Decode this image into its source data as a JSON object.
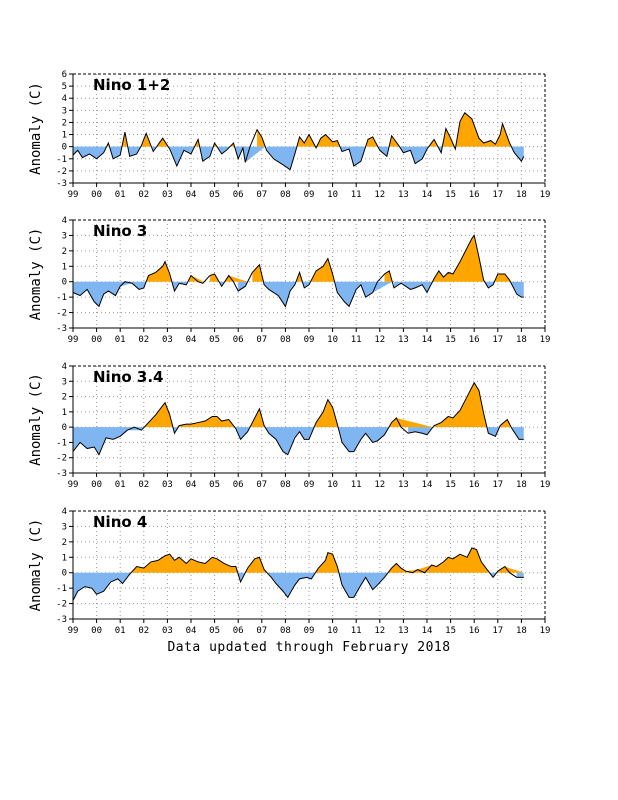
{
  "figure": {
    "footer": "Data updated through February 2018",
    "colors": {
      "positive": "#ffa500",
      "negative": "#7fb6f2",
      "line": "#000000",
      "grid": "#9a9a9a"
    }
  },
  "chart_data": [
    {
      "type": "area",
      "title": "Nino 1+2",
      "ylabel": "Anomaly (C)",
      "xlabel": "",
      "ylim": [
        -3,
        6
      ],
      "yticks": [
        "-3",
        "-2",
        "-1",
        "0",
        "1",
        "2",
        "3",
        "4",
        "5",
        "6"
      ],
      "xlim": [
        1999,
        2019
      ],
      "xticks": [
        "99",
        "00",
        "01",
        "02",
        "03",
        "04",
        "05",
        "06",
        "07",
        "08",
        "09",
        "10",
        "11",
        "12",
        "13",
        "14",
        "15",
        "16",
        "17",
        "18",
        "19"
      ],
      "grid": true,
      "series_points": [
        [
          1999.0,
          -0.7
        ],
        [
          1999.2,
          -0.3
        ],
        [
          1999.4,
          -0.9
        ],
        [
          1999.7,
          -0.6
        ],
        [
          2000.0,
          -1.0
        ],
        [
          2000.3,
          -0.5
        ],
        [
          2000.5,
          0.3
        ],
        [
          2000.7,
          -1.0
        ],
        [
          2001.0,
          -0.7
        ],
        [
          2001.2,
          1.2
        ],
        [
          2001.4,
          -0.8
        ],
        [
          2001.7,
          -0.6
        ],
        [
          2001.9,
          0.1
        ],
        [
          2002.1,
          1.1
        ],
        [
          2002.4,
          -0.4
        ],
        [
          2002.8,
          0.7
        ],
        [
          2003.1,
          -0.2
        ],
        [
          2003.4,
          -1.6
        ],
        [
          2003.7,
          -0.3
        ],
        [
          2004.0,
          -0.6
        ],
        [
          2004.3,
          0.6
        ],
        [
          2004.5,
          -1.2
        ],
        [
          2004.8,
          -0.8
        ],
        [
          2005.0,
          0.3
        ],
        [
          2005.3,
          -0.6
        ],
        [
          2005.5,
          -0.3
        ],
        [
          2005.8,
          0.3
        ],
        [
          2006.0,
          -1.0
        ],
        [
          2006.2,
          -0.1
        ],
        [
          2006.3,
          -1.3
        ],
        [
          2006.5,
          0.0
        ],
        [
          2006.8,
          1.4
        ],
        [
          2007.0,
          0.8
        ],
        [
          2007.2,
          -0.3
        ],
        [
          2007.5,
          -1.0
        ],
        [
          2007.9,
          -1.5
        ],
        [
          2008.2,
          -1.9
        ],
        [
          2008.4,
          -0.6
        ],
        [
          2008.6,
          0.8
        ],
        [
          2008.8,
          0.3
        ],
        [
          2009.0,
          1.0
        ],
        [
          2009.3,
          -0.1
        ],
        [
          2009.5,
          0.7
        ],
        [
          2009.7,
          1.0
        ],
        [
          2010.0,
          0.4
        ],
        [
          2010.2,
          0.5
        ],
        [
          2010.4,
          -0.4
        ],
        [
          2010.7,
          -0.2
        ],
        [
          2010.9,
          -1.6
        ],
        [
          2011.2,
          -1.2
        ],
        [
          2011.5,
          0.6
        ],
        [
          2011.7,
          0.8
        ],
        [
          2012.0,
          -0.3
        ],
        [
          2012.3,
          -0.8
        ],
        [
          2012.5,
          0.9
        ],
        [
          2012.8,
          0.1
        ],
        [
          2013.0,
          -0.5
        ],
        [
          2013.3,
          -0.3
        ],
        [
          2013.5,
          -1.4
        ],
        [
          2013.8,
          -1.0
        ],
        [
          2014.0,
          -0.2
        ],
        [
          2014.3,
          0.6
        ],
        [
          2014.6,
          -0.5
        ],
        [
          2014.8,
          1.5
        ],
        [
          2015.0,
          0.7
        ],
        [
          2015.2,
          -0.2
        ],
        [
          2015.4,
          2.1
        ],
        [
          2015.6,
          2.8
        ],
        [
          2015.9,
          2.3
        ],
        [
          2016.2,
          0.7
        ],
        [
          2016.4,
          0.3
        ],
        [
          2016.7,
          0.5
        ],
        [
          2016.9,
          0.2
        ],
        [
          2017.1,
          1.0
        ],
        [
          2017.2,
          1.9
        ],
        [
          2017.5,
          0.3
        ],
        [
          2017.7,
          -0.5
        ],
        [
          2018.0,
          -1.2
        ],
        [
          2018.1,
          -0.8
        ]
      ]
    },
    {
      "type": "area",
      "title": "Nino 3",
      "ylabel": "Anomaly (C)",
      "xlabel": "",
      "ylim": [
        -3,
        4
      ],
      "yticks": [
        "-3",
        "-2",
        "-1",
        "0",
        "1",
        "2",
        "3",
        "4"
      ],
      "xlim": [
        1999,
        2019
      ],
      "xticks": [
        "99",
        "00",
        "01",
        "02",
        "03",
        "04",
        "05",
        "06",
        "07",
        "08",
        "09",
        "10",
        "11",
        "12",
        "13",
        "14",
        "15",
        "16",
        "17",
        "18",
        "19"
      ],
      "grid": true,
      "series_points": [
        [
          1999.0,
          -0.7
        ],
        [
          1999.3,
          -0.9
        ],
        [
          1999.6,
          -0.5
        ],
        [
          1999.9,
          -1.3
        ],
        [
          2000.1,
          -1.6
        ],
        [
          2000.3,
          -0.8
        ],
        [
          2000.5,
          -0.6
        ],
        [
          2000.8,
          -0.9
        ],
        [
          2001.0,
          -0.3
        ],
        [
          2001.2,
          0.0
        ],
        [
          2001.5,
          -0.1
        ],
        [
          2001.8,
          -0.5
        ],
        [
          2002.0,
          -0.4
        ],
        [
          2002.2,
          0.4
        ],
        [
          2002.5,
          0.6
        ],
        [
          2002.8,
          1.0
        ],
        [
          2002.9,
          1.3
        ],
        [
          2003.1,
          0.5
        ],
        [
          2003.3,
          -0.6
        ],
        [
          2003.5,
          -0.1
        ],
        [
          2003.8,
          -0.2
        ],
        [
          2004.0,
          0.4
        ],
        [
          2004.3,
          0.0
        ],
        [
          2004.5,
          -0.1
        ],
        [
          2004.8,
          0.4
        ],
        [
          2005.0,
          0.5
        ],
        [
          2005.3,
          -0.3
        ],
        [
          2005.6,
          0.4
        ],
        [
          2005.8,
          0.0
        ],
        [
          2006.0,
          -0.6
        ],
        [
          2006.3,
          -0.3
        ],
        [
          2006.6,
          0.6
        ],
        [
          2006.9,
          1.1
        ],
        [
          2007.1,
          -0.2
        ],
        [
          2007.3,
          -0.5
        ],
        [
          2007.7,
          -0.9
        ],
        [
          2008.0,
          -1.6
        ],
        [
          2008.2,
          -0.6
        ],
        [
          2008.4,
          -0.2
        ],
        [
          2008.6,
          0.6
        ],
        [
          2008.8,
          -0.4
        ],
        [
          2009.0,
          -0.2
        ],
        [
          2009.3,
          0.7
        ],
        [
          2009.6,
          1.0
        ],
        [
          2009.8,
          1.5
        ],
        [
          2010.0,
          0.5
        ],
        [
          2010.2,
          -0.7
        ],
        [
          2010.5,
          -1.3
        ],
        [
          2010.7,
          -1.6
        ],
        [
          2011.0,
          -0.5
        ],
        [
          2011.2,
          -0.2
        ],
        [
          2011.4,
          -1.0
        ],
        [
          2011.7,
          -0.7
        ],
        [
          2011.9,
          0.0
        ],
        [
          2012.2,
          0.5
        ],
        [
          2012.4,
          0.7
        ],
        [
          2012.6,
          -0.4
        ],
        [
          2012.9,
          -0.1
        ],
        [
          2013.1,
          -0.3
        ],
        [
          2013.3,
          -0.5
        ],
        [
          2013.5,
          -0.4
        ],
        [
          2013.8,
          -0.2
        ],
        [
          2014.0,
          -0.7
        ],
        [
          2014.3,
          0.2
        ],
        [
          2014.5,
          0.7
        ],
        [
          2014.7,
          0.3
        ],
        [
          2014.9,
          0.6
        ],
        [
          2015.1,
          0.5
        ],
        [
          2015.4,
          1.3
        ],
        [
          2015.7,
          2.2
        ],
        [
          2015.9,
          2.8
        ],
        [
          2016.0,
          3.0
        ],
        [
          2016.2,
          1.6
        ],
        [
          2016.4,
          0.1
        ],
        [
          2016.6,
          -0.4
        ],
        [
          2016.8,
          -0.2
        ],
        [
          2017.0,
          0.5
        ],
        [
          2017.3,
          0.5
        ],
        [
          2017.5,
          0.1
        ],
        [
          2017.8,
          -0.8
        ],
        [
          2018.0,
          -1.0
        ],
        [
          2018.1,
          -1.0
        ]
      ]
    },
    {
      "type": "area",
      "title": "Nino 3.4",
      "ylabel": "Anomaly (C)",
      "xlabel": "",
      "ylim": [
        -3,
        4
      ],
      "yticks": [
        "-3",
        "-2",
        "-1",
        "0",
        "1",
        "2",
        "3",
        "4"
      ],
      "xlim": [
        1999,
        2019
      ],
      "xticks": [
        "99",
        "00",
        "01",
        "02",
        "03",
        "04",
        "05",
        "06",
        "07",
        "08",
        "09",
        "10",
        "11",
        "12",
        "13",
        "14",
        "15",
        "16",
        "17",
        "18",
        "19"
      ],
      "grid": true,
      "series_points": [
        [
          1999.0,
          -1.6
        ],
        [
          1999.3,
          -1.0
        ],
        [
          1999.6,
          -1.4
        ],
        [
          1999.9,
          -1.3
        ],
        [
          2000.1,
          -1.8
        ],
        [
          2000.4,
          -0.7
        ],
        [
          2000.7,
          -0.8
        ],
        [
          2001.0,
          -0.6
        ],
        [
          2001.3,
          -0.2
        ],
        [
          2001.6,
          0.0
        ],
        [
          2001.9,
          -0.2
        ],
        [
          2002.2,
          0.3
        ],
        [
          2002.5,
          0.8
        ],
        [
          2002.8,
          1.4
        ],
        [
          2002.9,
          1.6
        ],
        [
          2003.1,
          0.8
        ],
        [
          2003.3,
          -0.4
        ],
        [
          2003.5,
          0.1
        ],
        [
          2003.8,
          0.2
        ],
        [
          2004.0,
          0.2
        ],
        [
          2004.3,
          0.3
        ],
        [
          2004.6,
          0.4
        ],
        [
          2004.9,
          0.7
        ],
        [
          2005.1,
          0.7
        ],
        [
          2005.3,
          0.4
        ],
        [
          2005.6,
          0.5
        ],
        [
          2005.9,
          -0.1
        ],
        [
          2006.1,
          -0.8
        ],
        [
          2006.4,
          -0.3
        ],
        [
          2006.7,
          0.6
        ],
        [
          2006.9,
          1.2
        ],
        [
          2007.1,
          0.1
        ],
        [
          2007.3,
          -0.4
        ],
        [
          2007.6,
          -0.8
        ],
        [
          2007.9,
          -1.6
        ],
        [
          2008.1,
          -1.8
        ],
        [
          2008.4,
          -0.7
        ],
        [
          2008.6,
          -0.3
        ],
        [
          2008.8,
          -0.8
        ],
        [
          2009.0,
          -0.8
        ],
        [
          2009.3,
          0.3
        ],
        [
          2009.6,
          1.0
        ],
        [
          2009.8,
          1.8
        ],
        [
          2010.0,
          1.3
        ],
        [
          2010.2,
          0.2
        ],
        [
          2010.4,
          -1.0
        ],
        [
          2010.7,
          -1.6
        ],
        [
          2010.9,
          -1.6
        ],
        [
          2011.2,
          -0.8
        ],
        [
          2011.4,
          -0.4
        ],
        [
          2011.7,
          -1.0
        ],
        [
          2011.9,
          -0.9
        ],
        [
          2012.2,
          -0.5
        ],
        [
          2012.5,
          0.3
        ],
        [
          2012.7,
          0.6
        ],
        [
          2012.9,
          0.0
        ],
        [
          2013.2,
          -0.4
        ],
        [
          2013.5,
          -0.3
        ],
        [
          2013.8,
          -0.4
        ],
        [
          2014.0,
          -0.5
        ],
        [
          2014.3,
          0.1
        ],
        [
          2014.6,
          0.3
        ],
        [
          2014.9,
          0.7
        ],
        [
          2015.1,
          0.6
        ],
        [
          2015.4,
          1.1
        ],
        [
          2015.7,
          2.0
        ],
        [
          2015.9,
          2.6
        ],
        [
          2016.0,
          2.9
        ],
        [
          2016.2,
          2.4
        ],
        [
          2016.4,
          0.9
        ],
        [
          2016.6,
          -0.4
        ],
        [
          2016.9,
          -0.6
        ],
        [
          2017.1,
          0.1
        ],
        [
          2017.4,
          0.5
        ],
        [
          2017.6,
          -0.1
        ],
        [
          2017.9,
          -0.8
        ],
        [
          2018.1,
          -0.8
        ]
      ]
    },
    {
      "type": "area",
      "title": "Nino 4",
      "ylabel": "Anomaly (C)",
      "xlabel": "",
      "ylim": [
        -3,
        4
      ],
      "yticks": [
        "-3",
        "-2",
        "-1",
        "0",
        "1",
        "2",
        "3",
        "4"
      ],
      "xlim": [
        1999,
        2019
      ],
      "xticks": [
        "99",
        "00",
        "01",
        "02",
        "03",
        "04",
        "05",
        "06",
        "07",
        "08",
        "09",
        "10",
        "11",
        "12",
        "13",
        "14",
        "15",
        "16",
        "17",
        "18",
        "19"
      ],
      "grid": true,
      "series_points": [
        [
          1999.0,
          -1.8
        ],
        [
          1999.2,
          -1.2
        ],
        [
          1999.5,
          -0.9
        ],
        [
          1999.8,
          -1.0
        ],
        [
          2000.0,
          -1.4
        ],
        [
          2000.3,
          -1.2
        ],
        [
          2000.6,
          -0.6
        ],
        [
          2000.9,
          -0.4
        ],
        [
          2001.1,
          -0.7
        ],
        [
          2001.4,
          -0.1
        ],
        [
          2001.7,
          0.4
        ],
        [
          2002.0,
          0.3
        ],
        [
          2002.3,
          0.7
        ],
        [
          2002.6,
          0.8
        ],
        [
          2002.9,
          1.1
        ],
        [
          2003.1,
          1.2
        ],
        [
          2003.3,
          0.8
        ],
        [
          2003.5,
          1.0
        ],
        [
          2003.8,
          0.6
        ],
        [
          2004.0,
          0.9
        ],
        [
          2004.3,
          0.7
        ],
        [
          2004.6,
          0.6
        ],
        [
          2004.9,
          1.0
        ],
        [
          2005.1,
          0.9
        ],
        [
          2005.4,
          0.6
        ],
        [
          2005.7,
          0.4
        ],
        [
          2005.9,
          0.4
        ],
        [
          2006.1,
          -0.6
        ],
        [
          2006.4,
          0.3
        ],
        [
          2006.7,
          0.9
        ],
        [
          2006.9,
          1.0
        ],
        [
          2007.1,
          0.2
        ],
        [
          2007.4,
          -0.3
        ],
        [
          2007.6,
          -0.7
        ],
        [
          2007.9,
          -1.2
        ],
        [
          2008.1,
          -1.6
        ],
        [
          2008.4,
          -0.8
        ],
        [
          2008.6,
          -0.4
        ],
        [
          2008.9,
          -0.3
        ],
        [
          2009.1,
          -0.4
        ],
        [
          2009.4,
          0.3
        ],
        [
          2009.7,
          0.8
        ],
        [
          2009.8,
          1.3
        ],
        [
          2010.0,
          1.2
        ],
        [
          2010.2,
          0.4
        ],
        [
          2010.4,
          -0.8
        ],
        [
          2010.7,
          -1.6
        ],
        [
          2010.9,
          -1.6
        ],
        [
          2011.2,
          -0.8
        ],
        [
          2011.4,
          -0.3
        ],
        [
          2011.7,
          -1.1
        ],
        [
          2011.9,
          -0.8
        ],
        [
          2012.2,
          -0.3
        ],
        [
          2012.5,
          0.3
        ],
        [
          2012.7,
          0.6
        ],
        [
          2012.9,
          0.3
        ],
        [
          2013.1,
          0.1
        ],
        [
          2013.4,
          0.0
        ],
        [
          2013.6,
          0.2
        ],
        [
          2013.9,
          0.0
        ],
        [
          2014.2,
          0.5
        ],
        [
          2014.4,
          0.4
        ],
        [
          2014.7,
          0.7
        ],
        [
          2014.9,
          1.0
        ],
        [
          2015.1,
          0.9
        ],
        [
          2015.4,
          1.2
        ],
        [
          2015.7,
          1.0
        ],
        [
          2015.9,
          1.6
        ],
        [
          2016.1,
          1.5
        ],
        [
          2016.3,
          0.7
        ],
        [
          2016.6,
          0.1
        ],
        [
          2016.8,
          -0.3
        ],
        [
          2017.0,
          0.1
        ],
        [
          2017.3,
          0.4
        ],
        [
          2017.5,
          0.0
        ],
        [
          2017.8,
          -0.3
        ],
        [
          2018.1,
          -0.3
        ]
      ]
    }
  ]
}
